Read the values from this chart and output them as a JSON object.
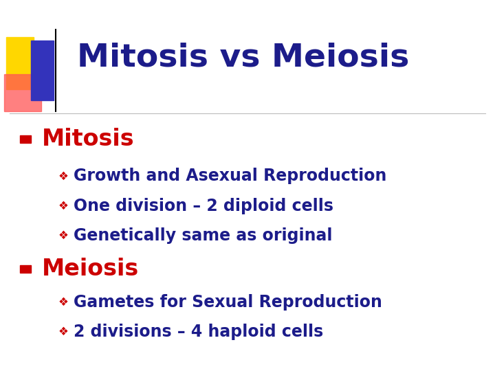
{
  "title": "Mitosis vs Meiosis",
  "title_color": "#1C1C8A",
  "title_fontsize": 34,
  "bg_color": "#FFFFFF",
  "decoration_yellow": "#FFD700",
  "decoration_red": "#FF5555",
  "decoration_blue": "#3333BB",
  "header_line_color": "#BBBBBB",
  "bullet1_text": "Mitosis",
  "bullet1_color": "#CC0000",
  "bullet1_fontsize": 24,
  "bullet_marker_color": "#CC0000",
  "sub_bullets_1": [
    "Growth and Asexual Reproduction",
    "One division – 2 diploid cells",
    "Genetically same as original"
  ],
  "bullet2_text": "Meiosis",
  "bullet2_color": "#CC0000",
  "bullet2_fontsize": 24,
  "sub_bullets_2": [
    "Gametes for Sexual Reproduction",
    "2 divisions – 4 haploid cells"
  ],
  "sub_bullet_color": "#1C1C8A",
  "sub_bullet_fontsize": 17,
  "sub_bullet_marker": "❖",
  "sub_bullet_marker_color": "#CC0000"
}
